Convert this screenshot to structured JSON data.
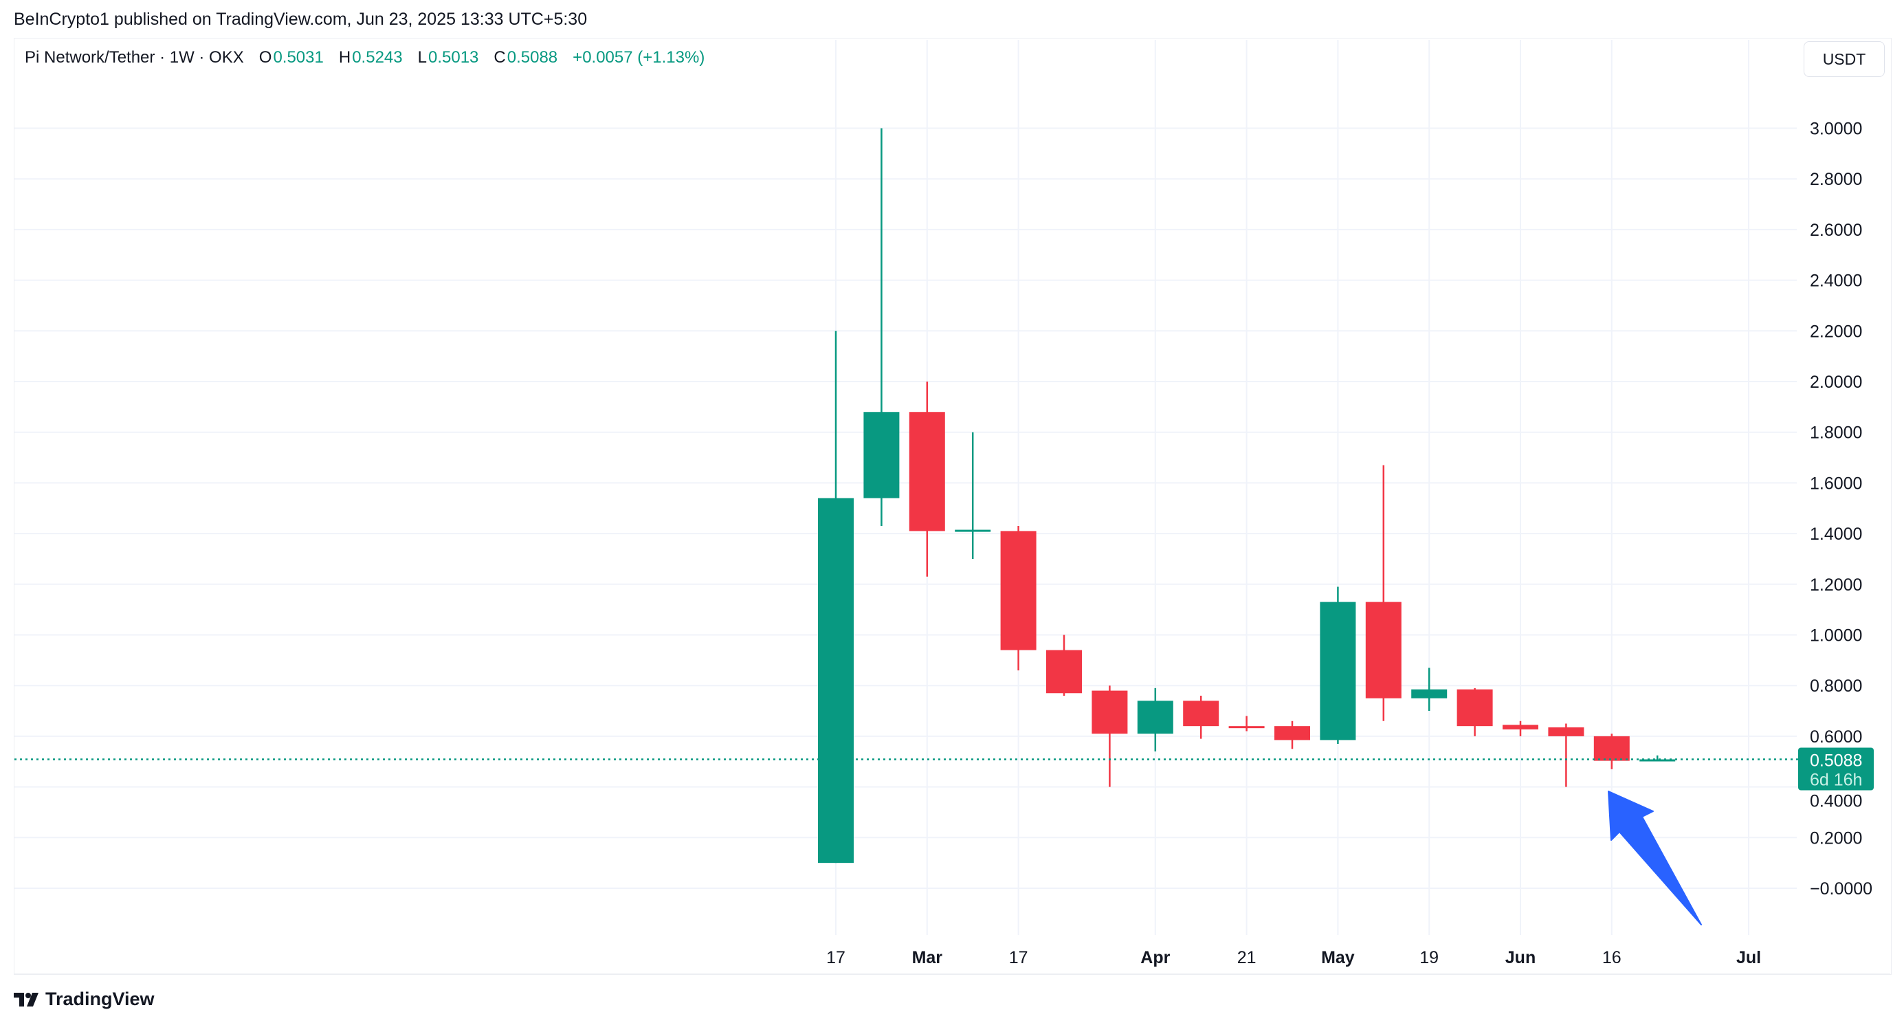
{
  "publisher_line": "BeInCrypto1 published on TradingView.com, Jun 23, 2025 13:33 UTC+5:30",
  "legend": {
    "symbol": "Pi Network/Tether · 1W · OKX",
    "o_label": "O",
    "o": "0.5031",
    "h_label": "H",
    "h": "0.5243",
    "l_label": "L",
    "l": "0.5013",
    "c_label": "C",
    "c": "0.5088",
    "change": "+0.0057 (+1.13%)"
  },
  "currency_button": "USDT",
  "price_tag": {
    "price": "0.5088",
    "countdown": "6d 16h"
  },
  "brand": "TradingView",
  "colors": {
    "up": "#089981",
    "down": "#f23645",
    "arrow": "#2962ff",
    "grid": "#f0f3fa"
  },
  "chart_data": {
    "type": "candlestick",
    "title": "Pi Network/Tether · 1W · OKX",
    "ylim": [
      -0.1,
      3.1
    ],
    "y_ticks": [
      "3.0000",
      "2.8000",
      "2.6000",
      "2.4000",
      "2.2000",
      "2.0000",
      "1.8000",
      "1.6000",
      "1.4000",
      "1.2000",
      "1.0000",
      "0.8000",
      "0.6000",
      "0.4000",
      "0.2000",
      "−0.0000"
    ],
    "y_tick_values": [
      3.0,
      2.8,
      2.6,
      2.4,
      2.2,
      2.0,
      1.8,
      1.6,
      1.4,
      1.2,
      1.0,
      0.8,
      0.6,
      0.4,
      0.2,
      0.0
    ],
    "x_ticks": [
      {
        "label": "17",
        "index": 0,
        "bold": false
      },
      {
        "label": "Mar",
        "index": 2,
        "bold": true
      },
      {
        "label": "17",
        "index": 4,
        "bold": false
      },
      {
        "label": "Apr",
        "index": 7,
        "bold": true
      },
      {
        "label": "21",
        "index": 9,
        "bold": false
      },
      {
        "label": "May",
        "index": 11,
        "bold": true
      },
      {
        "label": "19",
        "index": 13,
        "bold": false
      },
      {
        "label": "Jun",
        "index": 15,
        "bold": true
      },
      {
        "label": "16",
        "index": 17,
        "bold": false
      },
      {
        "label": "Jul",
        "index": 20,
        "bold": true
      }
    ],
    "candles": [
      {
        "week": "Feb 17",
        "o": 0.1,
        "h": 2.2,
        "l": 0.1,
        "c": 1.54
      },
      {
        "week": "Feb 24",
        "o": 1.54,
        "h": 3.0,
        "l": 1.43,
        "c": 1.88
      },
      {
        "week": "Mar 3",
        "o": 1.88,
        "h": 2.0,
        "l": 1.23,
        "c": 1.41
      },
      {
        "week": "Mar 10",
        "o": 1.41,
        "h": 1.8,
        "l": 1.3,
        "c": 1.415
      },
      {
        "week": "Mar 17",
        "o": 1.41,
        "h": 1.43,
        "l": 0.86,
        "c": 0.94
      },
      {
        "week": "Mar 24",
        "o": 0.94,
        "h": 1.0,
        "l": 0.76,
        "c": 0.77
      },
      {
        "week": "Mar 31",
        "o": 0.78,
        "h": 0.8,
        "l": 0.4,
        "c": 0.61
      },
      {
        "week": "Apr 7",
        "o": 0.61,
        "h": 0.79,
        "l": 0.54,
        "c": 0.74
      },
      {
        "week": "Apr 14",
        "o": 0.74,
        "h": 0.76,
        "l": 0.59,
        "c": 0.64
      },
      {
        "week": "Apr 21",
        "o": 0.64,
        "h": 0.68,
        "l": 0.62,
        "c": 0.632
      },
      {
        "week": "Apr 28",
        "o": 0.64,
        "h": 0.66,
        "l": 0.55,
        "c": 0.585
      },
      {
        "week": "May 5",
        "o": 0.585,
        "h": 1.19,
        "l": 0.57,
        "c": 1.13
      },
      {
        "week": "May 12",
        "o": 1.13,
        "h": 1.67,
        "l": 0.66,
        "c": 0.75
      },
      {
        "week": "May 19",
        "o": 0.75,
        "h": 0.87,
        "l": 0.7,
        "c": 0.785
      },
      {
        "week": "May 26",
        "o": 0.785,
        "h": 0.79,
        "l": 0.6,
        "c": 0.64
      },
      {
        "week": "Jun 2",
        "o": 0.645,
        "h": 0.66,
        "l": 0.6,
        "c": 0.627
      },
      {
        "week": "Jun 9",
        "o": 0.635,
        "h": 0.65,
        "l": 0.4,
        "c": 0.6
      },
      {
        "week": "Jun 16",
        "o": 0.6,
        "h": 0.61,
        "l": 0.47,
        "c": 0.5031
      },
      {
        "week": "Jun 23",
        "o": 0.5031,
        "h": 0.5243,
        "l": 0.5013,
        "c": 0.5088
      }
    ],
    "last_price": 0.5088
  }
}
